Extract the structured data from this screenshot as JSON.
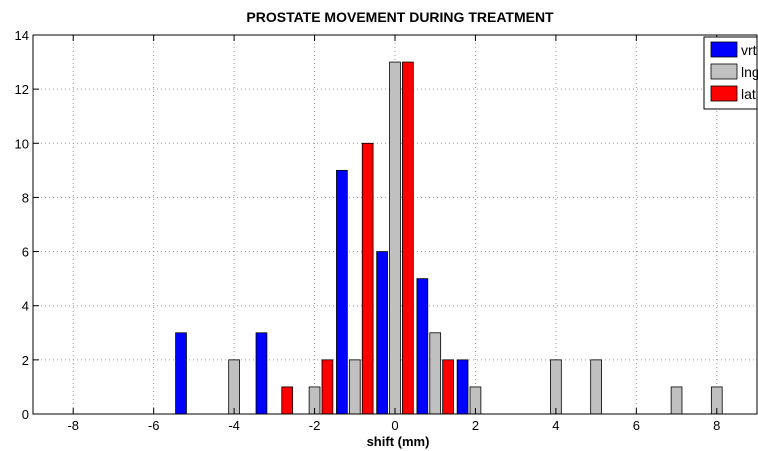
{
  "chart_data": {
    "type": "bar",
    "title": "PROSTATE MOVEMENT DURING TREATMENT",
    "xlabel": "shift (mm)",
    "ylabel": "",
    "xlim": [
      -9,
      9
    ],
    "ylim": [
      0,
      14
    ],
    "xticks": [
      -8,
      -6,
      -4,
      -2,
      0,
      2,
      4,
      6,
      8
    ],
    "yticks": [
      0,
      2,
      4,
      6,
      8,
      10,
      12,
      14
    ],
    "grid": true,
    "legend_position": "top-right",
    "x": [
      -5,
      -4,
      -3,
      -2,
      -1,
      0,
      1,
      2,
      3,
      4,
      5,
      6,
      7,
      8
    ],
    "series": [
      {
        "name": "vrt",
        "color": "#0000ff",
        "values": [
          3,
          0,
          3,
          0,
          9,
          6,
          5,
          2,
          0,
          0,
          0,
          0,
          0,
          0
        ]
      },
      {
        "name": "lng",
        "color": "#c0c0c0",
        "values": [
          0,
          2,
          0,
          1,
          2,
          13,
          3,
          1,
          0,
          2,
          2,
          0,
          1,
          1
        ]
      },
      {
        "name": "lat",
        "color": "#ff0000",
        "values": [
          0,
          0,
          1,
          2,
          10,
          13,
          2,
          0,
          0,
          0,
          0,
          0,
          0,
          0
        ]
      }
    ]
  }
}
